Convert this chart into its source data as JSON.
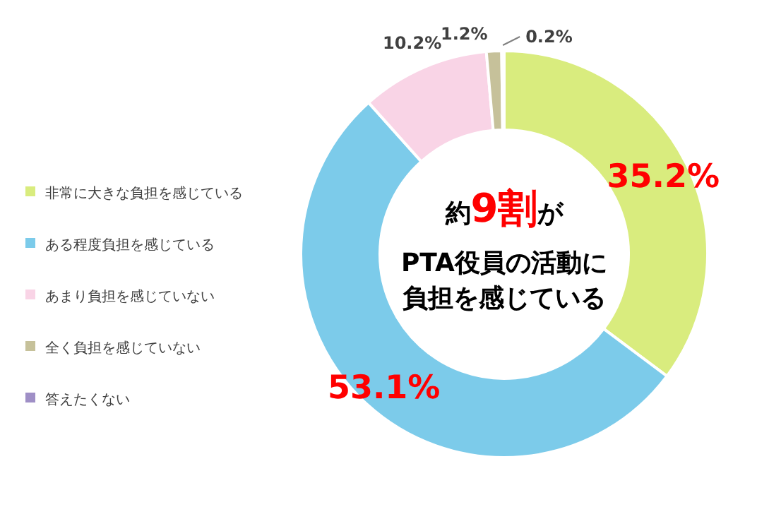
{
  "chart_data": {
    "type": "donut",
    "categories": [
      "非常に大きな負担を感じている",
      "ある程度負担を感じている",
      "あまり負担を感じていない",
      "全く負担を感じていない",
      "答えたくない"
    ],
    "values": [
      35.2,
      53.1,
      10.2,
      1.2,
      0.2
    ],
    "colors": [
      "#d9ec7e",
      "#7ccbea",
      "#f9d4e6",
      "#c6c19a",
      "#9f8fc6"
    ],
    "value_labels": [
      "35.2%",
      "53.1%",
      "10.2%",
      "1.2%",
      "0.2%"
    ],
    "annotations": [
      "約9割が",
      "PTA役員の活動に",
      "負担を感じている"
    ],
    "legend": "left"
  }
}
